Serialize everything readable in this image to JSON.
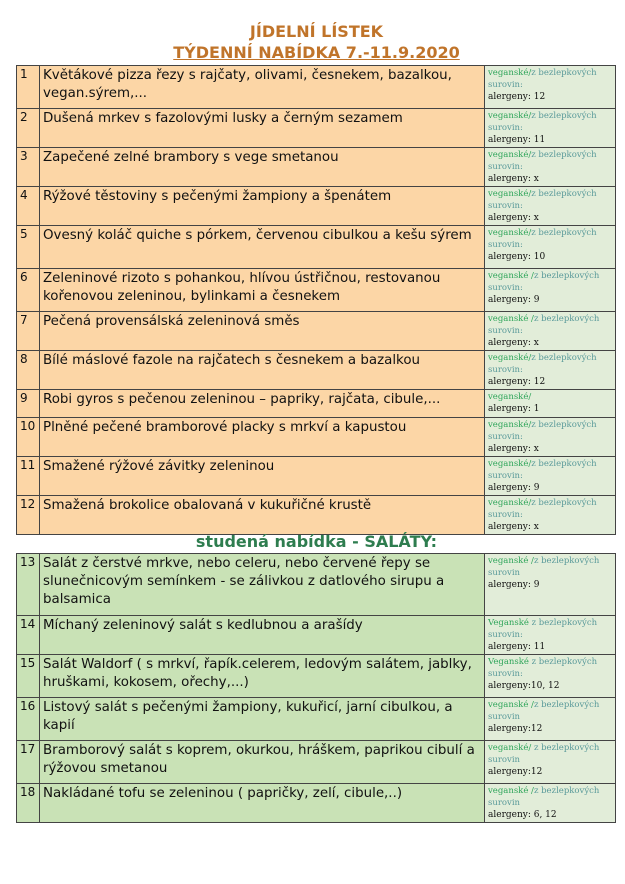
{
  "header": {
    "title": "JÍDELNÍ LÍSTEK",
    "subtitle": "TÝDENNÍ NABÍDKA 7.-11.9.2020",
    "salads_title": "studená nabídka - SALÁTY:"
  },
  "colors": {
    "title": "#c0742a",
    "salads_title": "#2e7d4f",
    "hot_row": "#fcd6a6",
    "salad_row": "#c9e2b6",
    "info_cell": "#e2edd9"
  },
  "hot_menu": [
    {
      "num": "1",
      "name": "Květákové pizza řezy s rajčaty, olivami, česnekem, bazalkou, vegan.sýrem,...",
      "vegan": "veganské/",
      "gluten_free": "z bezlepkových surovin:",
      "allergens": "alergeny: 12"
    },
    {
      "num": "2",
      "name": "Dušená mrkev s fazolovými lusky a černým sezamem",
      "vegan": "veganské/",
      "gluten_free": "z bezlepkových surovin:",
      "allergens": "alergeny: 11"
    },
    {
      "num": "3",
      "name": "Zapečené zelné brambory s vege smetanou",
      "vegan": "veganské/",
      "gluten_free": "z bezlepkových surovin:",
      "allergens": "alergeny: x"
    },
    {
      "num": "4",
      "name": "Rýžové těstoviny s pečenými žampiony a špenátem",
      "vegan": "veganské/",
      "gluten_free": "z bezlepkových surovin:",
      "allergens": "alergeny: x"
    },
    {
      "num": "5",
      "name": "Ovesný koláč quiche s pórkem, červenou cibulkou a kešu sýrem",
      "vegan": "veganské/",
      "gluten_free": "z bezlepkových surovin:",
      "allergens": "alergeny: 10"
    },
    {
      "num": "6",
      "name": "Zeleninové rizoto s pohankou, hlívou ústřičnou, restovanou kořenovou zeleninou, bylinkami a česnekem",
      "vegan": "veganské /",
      "gluten_free": "z bezlepkových surovin:",
      "allergens": "alergeny: 9"
    },
    {
      "num": "7",
      "name": "Pečená provensálská zeleninová směs",
      "vegan": "veganské /",
      "gluten_free": "z bezlepkových surovin:",
      "allergens": "alergeny: x"
    },
    {
      "num": "8",
      "name": "Bílé máslové fazole na rajčatech s česnekem a bazalkou",
      "vegan": "veganské/",
      "gluten_free": "z bezlepkových surovin:",
      "allergens": "alergeny: 12"
    },
    {
      "num": "9",
      "name": "Robi gyros s pečenou zeleninou – papriky, rajčata, cibule,...",
      "vegan": "veganské/",
      "gluten_free": "",
      "allergens": "alergeny: 1"
    },
    {
      "num": "10",
      "name": "Plněné pečené bramborové placky s mrkví a kapustou",
      "vegan": "veganské/",
      "gluten_free": "z bezlepkových surovin:",
      "allergens": "alergeny: x"
    },
    {
      "num": "11",
      "name": "Smažené rýžové závitky zeleninou",
      "vegan": "veganské/",
      "gluten_free": "z bezlepkových surovin:",
      "allergens": "alergeny: 9"
    },
    {
      "num": "12",
      "name": "Smažená brokolice obalovaná v kukuřičné krustě",
      "vegan": "veganské/",
      "gluten_free": "z bezlepkových surovin:",
      "allergens": "alergeny: x"
    }
  ],
  "salads": [
    {
      "num": "13",
      "name": "Salát z čerstvé mrkve, nebo celeru, nebo červené řepy se slunečnicovým semínkem - se zálivkou z datlového sirupu a balsamica",
      "vegan": "veganské /",
      "gluten_free": "z bezlepkových surovin",
      "allergens": "alergeny: 9"
    },
    {
      "num": "14",
      "name": "Míchaný zeleninový salát s kedlubnou a arašídy",
      "vegan": "Veganské ",
      "gluten_free": "z bezlepkových surovin:",
      "allergens": "alergeny: 11"
    },
    {
      "num": "15",
      "name": "Salát Waldorf ( s mrkví, řapík.celerem, ledovým salátem, jablky, hruškami, kokosem, ořechy,...)",
      "vegan": "Veganské ",
      "gluten_free": "z bezlepkových surovin:",
      "allergens": "alergeny:10, 12"
    },
    {
      "num": "16",
      "name": "Listový salát s pečenými žampiony, kukuřicí, jarní cibulkou, a kapií",
      "vegan": "veganské /",
      "gluten_free": "z bezlepkových surovin",
      "allergens": "alergeny:12"
    },
    {
      "num": "17",
      "name": "Bramborový salát s koprem, okurkou, hráškem, paprikou cibulí a rýžovou smetanou",
      "vegan": "veganské/ ",
      "gluten_free": "z bezlepkových surovin",
      "allergens": "alergeny:12"
    },
    {
      "num": "18",
      "name": "Nakládané tofu se zeleninou ( papričky, zelí, cibule,..)",
      "vegan": "veganské /",
      "gluten_free": "z bezlepkových surovin",
      "allergens": "alergeny: 6, 12"
    }
  ]
}
